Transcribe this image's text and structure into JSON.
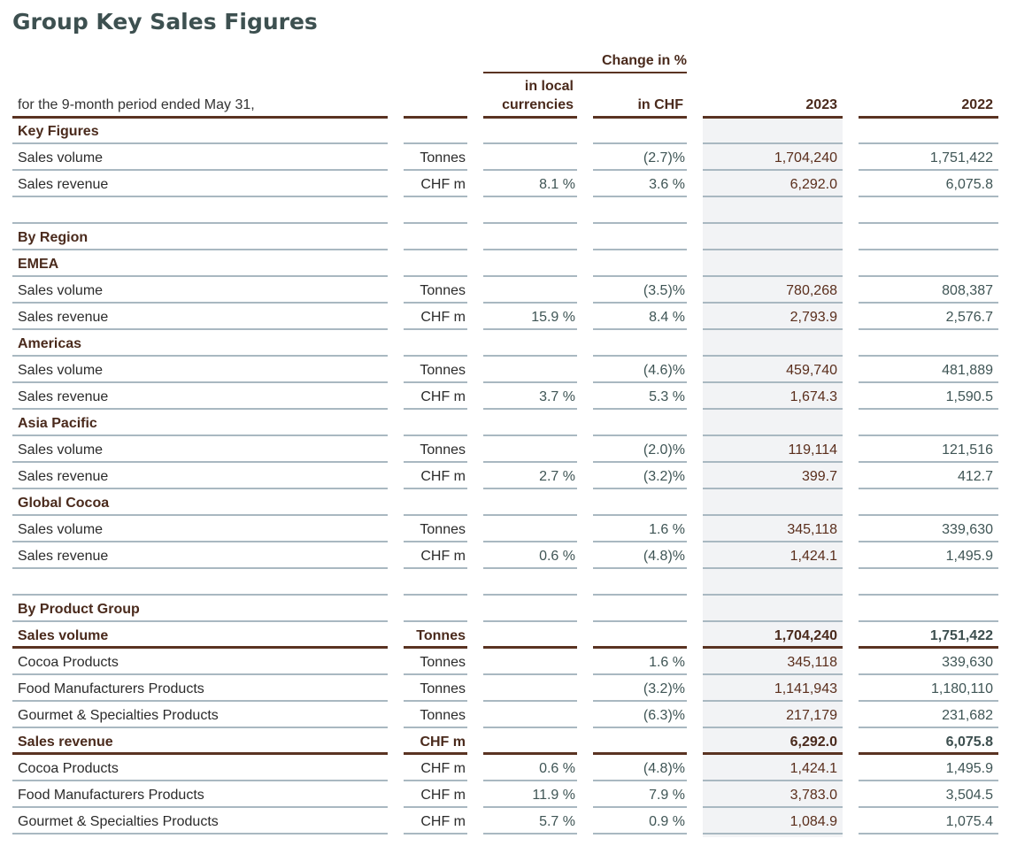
{
  "title": "Group Key Sales Figures",
  "header": {
    "period_label": "for the 9-month period ended May 31,",
    "change_group": "Change in %",
    "local_line1": "in local",
    "local_line2": "currencies",
    "chf": "in CHF",
    "year_current": "2023",
    "year_prior": "2022"
  },
  "rows": [
    {
      "type": "section",
      "label": "Key Figures",
      "unit": "",
      "local": "",
      "chf": "",
      "y2023": "",
      "y2022": ""
    },
    {
      "type": "data",
      "label": "Sales volume",
      "unit": "Tonnes",
      "local": "",
      "chf": "(2.7)%",
      "y2023": "1,704,240",
      "y2022": "1,751,422"
    },
    {
      "type": "data",
      "label": "Sales revenue",
      "unit": "CHF m",
      "local": "8.1 %",
      "chf": "3.6 %",
      "y2023": "6,292.0",
      "y2022": "6,075.8"
    },
    {
      "type": "blank",
      "label": "",
      "unit": "",
      "local": "",
      "chf": "",
      "y2023": "",
      "y2022": ""
    },
    {
      "type": "section",
      "label": "By Region",
      "unit": "",
      "local": "",
      "chf": "",
      "y2023": "",
      "y2022": ""
    },
    {
      "type": "section",
      "label": "EMEA",
      "unit": "",
      "local": "",
      "chf": "",
      "y2023": "",
      "y2022": ""
    },
    {
      "type": "data",
      "label": "Sales volume",
      "unit": "Tonnes",
      "local": "",
      "chf": "(3.5)%",
      "y2023": "780,268",
      "y2022": "808,387"
    },
    {
      "type": "data",
      "label": "Sales revenue",
      "unit": "CHF m",
      "local": "15.9 %",
      "chf": "8.4 %",
      "y2023": "2,793.9",
      "y2022": "2,576.7"
    },
    {
      "type": "section",
      "label": "Americas",
      "unit": "",
      "local": "",
      "chf": "",
      "y2023": "",
      "y2022": ""
    },
    {
      "type": "data",
      "label": "Sales volume",
      "unit": "Tonnes",
      "local": "",
      "chf": "(4.6)%",
      "y2023": "459,740",
      "y2022": "481,889"
    },
    {
      "type": "data",
      "label": "Sales revenue",
      "unit": "CHF m",
      "local": "3.7 %",
      "chf": "5.3 %",
      "y2023": "1,674.3",
      "y2022": "1,590.5"
    },
    {
      "type": "section",
      "label": "Asia Pacific",
      "unit": "",
      "local": "",
      "chf": "",
      "y2023": "",
      "y2022": ""
    },
    {
      "type": "data",
      "label": "Sales volume",
      "unit": "Tonnes",
      "local": "",
      "chf": "(2.0)%",
      "y2023": "119,114",
      "y2022": "121,516"
    },
    {
      "type": "data",
      "label": "Sales revenue",
      "unit": "CHF m",
      "local": "2.7 %",
      "chf": "(3.2)%",
      "y2023": "399.7",
      "y2022": "412.7"
    },
    {
      "type": "section",
      "label": "Global Cocoa",
      "unit": "",
      "local": "",
      "chf": "",
      "y2023": "",
      "y2022": ""
    },
    {
      "type": "data",
      "label": "Sales volume",
      "unit": "Tonnes",
      "local": "",
      "chf": "1.6 %",
      "y2023": "345,118",
      "y2022": "339,630"
    },
    {
      "type": "data",
      "label": "Sales revenue",
      "unit": "CHF m",
      "local": "0.6 %",
      "chf": "(4.8)%",
      "y2023": "1,424.1",
      "y2022": "1,495.9"
    },
    {
      "type": "blank",
      "label": "",
      "unit": "",
      "local": "",
      "chf": "",
      "y2023": "",
      "y2022": ""
    },
    {
      "type": "section",
      "label": "By Product Group",
      "unit": "",
      "local": "",
      "chf": "",
      "y2023": "",
      "y2022": ""
    },
    {
      "type": "total",
      "label": "Sales volume",
      "unit": "Tonnes",
      "local": "",
      "chf": "",
      "y2023": "1,704,240",
      "y2022": "1,751,422"
    },
    {
      "type": "data",
      "label": "Cocoa Products",
      "unit": "Tonnes",
      "local": "",
      "chf": "1.6 %",
      "y2023": "345,118",
      "y2022": "339,630"
    },
    {
      "type": "data",
      "label": "Food Manufacturers Products",
      "unit": "Tonnes",
      "local": "",
      "chf": "(3.2)%",
      "y2023": "1,141,943",
      "y2022": "1,180,110"
    },
    {
      "type": "data",
      "label": "Gourmet & Specialties Products",
      "unit": "Tonnes",
      "local": "",
      "chf": "(6.3)%",
      "y2023": "217,179",
      "y2022": "231,682"
    },
    {
      "type": "total",
      "label": "Sales revenue",
      "unit": "CHF m",
      "local": "",
      "chf": "",
      "y2023": "6,292.0",
      "y2022": "6,075.8"
    },
    {
      "type": "data",
      "label": "Cocoa Products",
      "unit": "CHF m",
      "local": "0.6 %",
      "chf": "(4.8)%",
      "y2023": "1,424.1",
      "y2022": "1,495.9"
    },
    {
      "type": "data",
      "label": "Food Manufacturers Products",
      "unit": "CHF m",
      "local": "11.9 %",
      "chf": "7.9 %",
      "y2023": "3,783.0",
      "y2022": "3,504.5"
    },
    {
      "type": "data",
      "label": "Gourmet & Specialties Products",
      "unit": "CHF m",
      "local": "5.7 %",
      "chf": "0.9 %",
      "y2023": "1,084.9",
      "y2022": "1,075.4"
    }
  ]
}
